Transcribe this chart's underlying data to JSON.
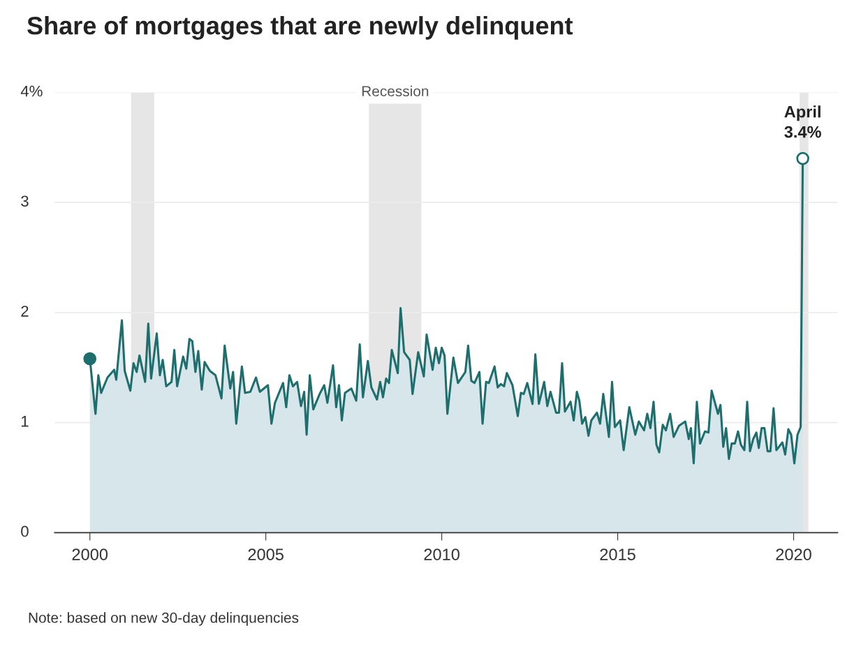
{
  "chart_data": {
    "type": "area",
    "title": "Share of mortgages that are newly delinquent",
    "series": [
      {
        "type": "scatter",
        "color": "#1f6e6e",
        "marker": "circle",
        "x": [
          2000.0,
          2020.26
        ],
        "values": [
          1.58,
          3.4
        ]
      },
      {
        "color": "#1f6e6e",
        "x": [
          2000.0,
          2000.16,
          2000.24,
          2000.32,
          2000.5,
          2000.69,
          2000.75,
          2000.91,
          2000.99,
          2001.15,
          2001.24,
          2001.33,
          2001.41,
          2001.57,
          2001.66,
          2001.74,
          2001.9,
          2001.99,
          2002.07,
          2002.17,
          2002.32,
          2002.4,
          2002.48,
          2002.65,
          2002.74,
          2002.83,
          2002.91,
          2003.0,
          2003.08,
          2003.18,
          2003.26,
          2003.41,
          2003.57,
          2003.74,
          2003.83,
          2003.99,
          2004.07,
          2004.16,
          2004.32,
          2004.41,
          2004.56,
          2004.72,
          2004.83,
          2005.06,
          2005.16,
          2005.26,
          2005.49,
          2005.58,
          2005.67,
          2005.77,
          2005.89,
          2006.0,
          2006.09,
          2006.16,
          2006.25,
          2006.35,
          2006.53,
          2006.66,
          2006.75,
          2006.91,
          2007.0,
          2007.08,
          2007.16,
          2007.25,
          2007.43,
          2007.57,
          2007.67,
          2007.76,
          2007.9,
          2008.0,
          2008.16,
          2008.25,
          2008.33,
          2008.42,
          2008.5,
          2008.58,
          2008.75,
          2008.83,
          2008.93,
          2009.09,
          2009.17,
          2009.33,
          2009.49,
          2009.57,
          2009.74,
          2009.83,
          2009.92,
          2010.0,
          2010.08,
          2010.16,
          2010.33,
          2010.46,
          2010.67,
          2010.75,
          2010.84,
          2010.93,
          2011.07,
          2011.16,
          2011.26,
          2011.34,
          2011.5,
          2011.59,
          2011.68,
          2011.77,
          2011.85,
          2012.01,
          2012.16,
          2012.25,
          2012.33,
          2012.43,
          2012.58,
          2012.66,
          2012.76,
          2012.91,
          2013.0,
          2013.09,
          2013.25,
          2013.33,
          2013.42,
          2013.5,
          2013.66,
          2013.75,
          2013.84,
          2013.91,
          2013.99,
          2014.08,
          2014.17,
          2014.25,
          2014.41,
          2014.5,
          2014.59,
          2014.75,
          2014.84,
          2014.92,
          2015.07,
          2015.17,
          2015.33,
          2015.5,
          2015.6,
          2015.75,
          2015.84,
          2015.93,
          2016.02,
          2016.1,
          2016.18,
          2016.28,
          2016.37,
          2016.49,
          2016.59,
          2016.74,
          2016.92,
          2017.02,
          2017.08,
          2017.16,
          2017.25,
          2017.34,
          2017.48,
          2017.58,
          2017.67,
          2017.85,
          2017.92,
          2018.0,
          2018.08,
          2018.16,
          2018.24,
          2018.33,
          2018.42,
          2018.5,
          2018.6,
          2018.68,
          2018.76,
          2018.85,
          2018.94,
          2019.01,
          2019.09,
          2019.17,
          2019.26,
          2019.34,
          2019.43,
          2019.51,
          2019.68,
          2019.76,
          2019.85,
          2019.93,
          2020.02,
          2020.11,
          2020.2,
          2020.26
        ],
        "values": [
          1.58,
          1.08,
          1.43,
          1.27,
          1.41,
          1.48,
          1.39,
          1.93,
          1.47,
          1.29,
          1.54,
          1.46,
          1.61,
          1.37,
          1.9,
          1.4,
          1.81,
          1.43,
          1.57,
          1.33,
          1.37,
          1.66,
          1.33,
          1.6,
          1.49,
          1.76,
          1.74,
          1.46,
          1.65,
          1.3,
          1.55,
          1.47,
          1.43,
          1.22,
          1.7,
          1.31,
          1.46,
          0.99,
          1.51,
          1.27,
          1.28,
          1.41,
          1.28,
          1.34,
          0.99,
          1.18,
          1.36,
          1.14,
          1.43,
          1.33,
          1.37,
          1.15,
          1.28,
          0.89,
          1.43,
          1.12,
          1.26,
          1.34,
          1.18,
          1.52,
          1.14,
          1.34,
          1.02,
          1.27,
          1.31,
          1.2,
          1.71,
          1.23,
          1.56,
          1.32,
          1.21,
          1.37,
          1.23,
          1.4,
          1.36,
          1.66,
          1.45,
          2.04,
          1.64,
          1.57,
          1.26,
          1.64,
          1.42,
          1.8,
          1.48,
          1.68,
          1.54,
          1.68,
          1.61,
          1.08,
          1.59,
          1.36,
          1.46,
          1.7,
          1.38,
          1.36,
          1.46,
          0.99,
          1.37,
          1.36,
          1.51,
          1.32,
          1.35,
          1.33,
          1.45,
          1.34,
          1.06,
          1.27,
          1.26,
          1.36,
          1.17,
          1.62,
          1.17,
          1.37,
          1.15,
          1.28,
          1.09,
          1.09,
          1.54,
          1.1,
          1.19,
          1.02,
          1.28,
          1.2,
          0.99,
          1.05,
          0.88,
          1.02,
          1.09,
          0.99,
          1.26,
          0.87,
          1.37,
          0.96,
          1.02,
          0.75,
          1.14,
          0.89,
          1.01,
          0.93,
          1.08,
          0.95,
          1.19,
          0.8,
          0.73,
          0.98,
          0.93,
          1.08,
          0.87,
          0.97,
          1.01,
          0.85,
          0.95,
          0.63,
          1.19,
          0.81,
          0.92,
          0.91,
          1.29,
          1.08,
          1.16,
          0.78,
          0.95,
          0.67,
          0.81,
          0.81,
          0.92,
          0.8,
          0.75,
          1.19,
          0.74,
          0.85,
          0.91,
          0.77,
          0.95,
          0.95,
          0.74,
          0.74,
          1.13,
          0.75,
          0.82,
          0.71,
          0.94,
          0.89,
          0.63,
          0.89,
          0.96,
          3.4
        ]
      }
    ],
    "xlim": [
      1999.0,
      2021.25
    ],
    "xticks": [
      2000,
      2005,
      2010,
      2015,
      2020
    ],
    "ylim": [
      0,
      4
    ],
    "yticks": [
      0,
      1,
      2,
      3,
      {
        "value": 4,
        "label": "4%"
      }
    ],
    "grid": "y",
    "bands": [
      {
        "axis": "x",
        "from": 2001.17,
        "to": 2001.83,
        "label": null,
        "color": "#e6e6e6"
      },
      {
        "axis": "x",
        "from": 2007.93,
        "to": 2009.42,
        "label": "Recession",
        "color": "#e6e6e6"
      },
      {
        "axis": "x",
        "from": 2020.17,
        "to": 2020.42,
        "label": null,
        "color": "#e6e6e6"
      }
    ],
    "annotations": [
      {
        "text": "April\n3.4%",
        "x": 2020.26,
        "y": 3.4
      },
      "Note: based on new 30-day delinquencies"
    ]
  }
}
